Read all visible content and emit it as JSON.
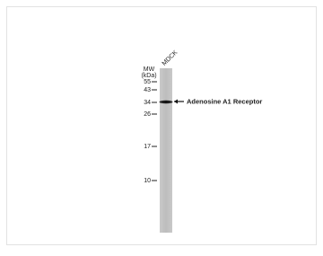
{
  "lane_label": "MDCK",
  "mw_header": [
    "MW",
    "(kDa)"
  ],
  "markers": [
    "55",
    "43",
    "34",
    "26",
    "17",
    "10"
  ],
  "band_label": "Adenosine A1 Receptor"
}
